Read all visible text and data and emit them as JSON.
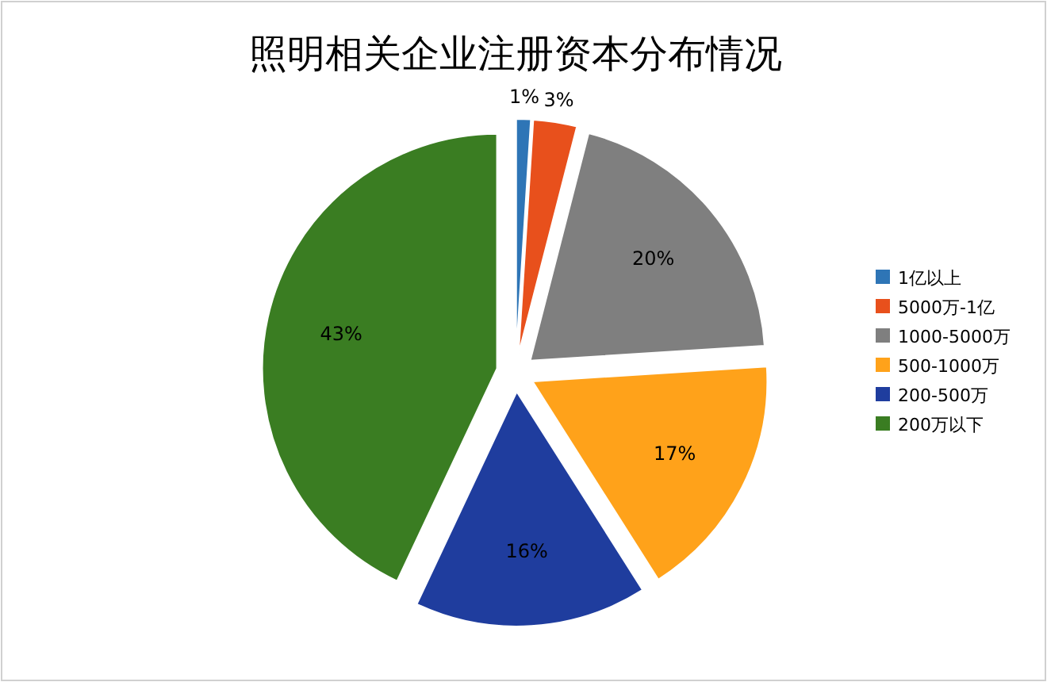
{
  "chart_data": {
    "type": "pie",
    "title": "照明相关企业注册资本分布情况",
    "categories": [
      "1亿以上",
      "5000万-1亿",
      "1000-5000万",
      "500-1000万",
      "200-500万",
      "200万以下"
    ],
    "values": [
      1,
      3,
      20,
      17,
      16,
      43
    ],
    "colors": [
      "#2e75b6",
      "#e8501c",
      "#7f7f7f",
      "#ffa21a",
      "#1f3d9e",
      "#3a7d22"
    ],
    "value_labels": [
      "1%",
      "3%",
      "20%",
      "17%",
      "16%",
      "43%"
    ],
    "legend": "right"
  }
}
